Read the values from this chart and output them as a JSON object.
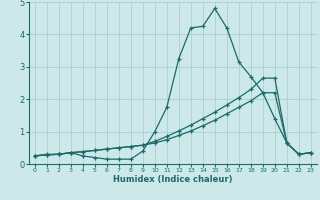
{
  "xlabel": "Humidex (Indice chaleur)",
  "xlim": [
    -0.5,
    23.5
  ],
  "ylim": [
    0,
    5
  ],
  "xticks": [
    0,
    1,
    2,
    3,
    4,
    5,
    6,
    7,
    8,
    9,
    10,
    11,
    12,
    13,
    14,
    15,
    16,
    17,
    18,
    19,
    20,
    21,
    22,
    23
  ],
  "yticks": [
    0,
    1,
    2,
    3,
    4,
    5
  ],
  "bg_color": "#cce8e8",
  "grid_color": "#aacfcf",
  "line_color": "#1a6b6b",
  "series1_x": [
    0,
    1,
    2,
    3,
    4,
    5,
    6,
    7,
    8,
    9,
    10,
    11,
    12,
    13,
    14,
    15,
    16,
    17,
    18,
    19,
    20,
    21,
    22,
    23
  ],
  "series1_y": [
    0.25,
    0.3,
    0.3,
    0.35,
    0.25,
    0.2,
    0.15,
    0.15,
    0.15,
    0.4,
    1.0,
    1.75,
    3.25,
    4.2,
    4.25,
    4.8,
    4.2,
    3.15,
    2.7,
    2.2,
    1.4,
    0.65,
    0.3,
    0.35
  ],
  "series2_x": [
    0,
    1,
    2,
    3,
    4,
    5,
    6,
    7,
    8,
    9,
    10,
    11,
    12,
    13,
    14,
    15,
    16,
    17,
    18,
    19,
    20,
    21,
    22,
    23
  ],
  "series2_y": [
    0.25,
    0.28,
    0.3,
    0.35,
    0.38,
    0.42,
    0.46,
    0.5,
    0.54,
    0.58,
    0.65,
    0.75,
    0.88,
    1.02,
    1.18,
    1.35,
    1.55,
    1.75,
    1.95,
    2.2,
    2.2,
    0.65,
    0.3,
    0.35
  ],
  "series3_x": [
    0,
    1,
    2,
    3,
    4,
    5,
    6,
    7,
    8,
    9,
    10,
    11,
    12,
    13,
    14,
    15,
    16,
    17,
    18,
    19,
    20,
    21,
    22,
    23
  ],
  "series3_y": [
    0.25,
    0.28,
    0.3,
    0.35,
    0.38,
    0.42,
    0.46,
    0.5,
    0.54,
    0.58,
    0.7,
    0.85,
    1.02,
    1.2,
    1.4,
    1.6,
    1.82,
    2.05,
    2.3,
    2.65,
    2.65,
    0.65,
    0.3,
    0.35
  ]
}
